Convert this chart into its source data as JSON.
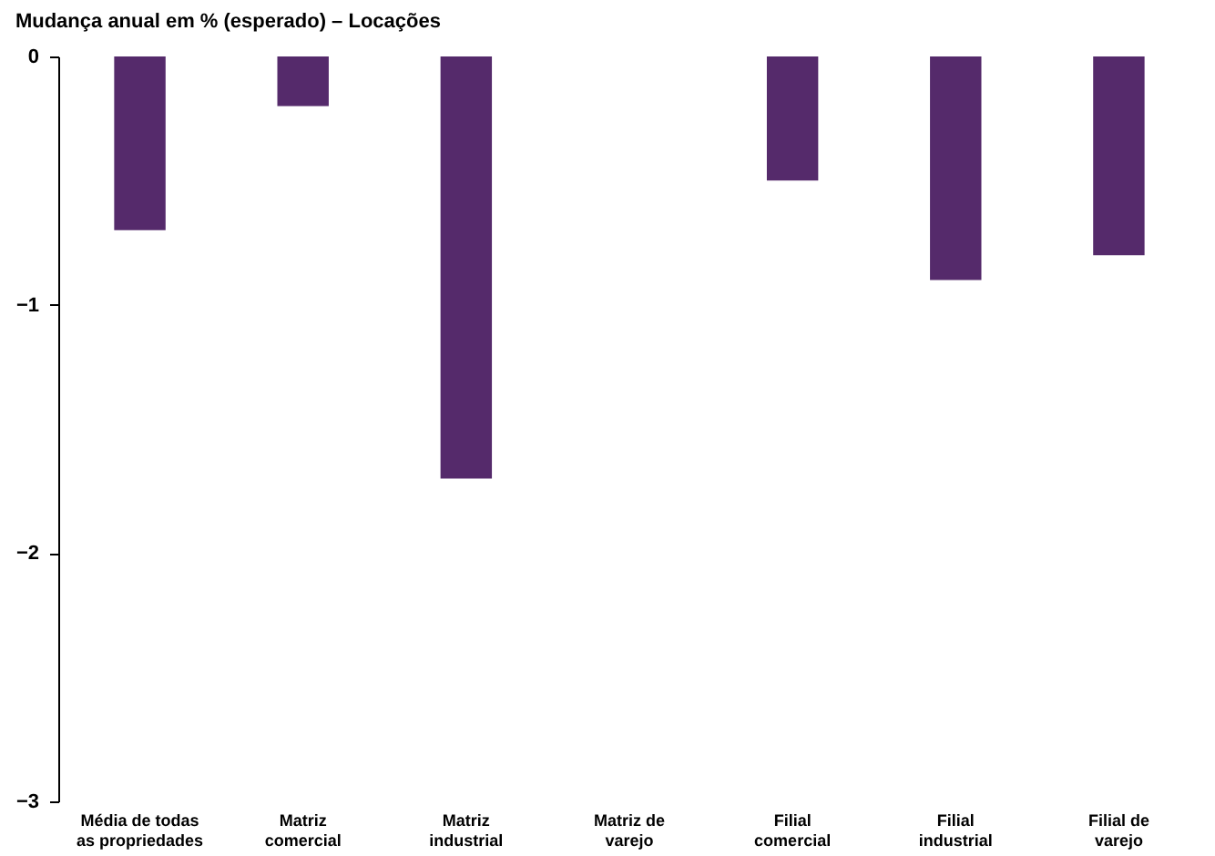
{
  "chart_data": {
    "type": "bar",
    "title": "Mudança anual em % (esperado) – Locações",
    "categories": [
      "Média de todas as propriedades",
      "Matriz comercial",
      "Matriz industrial",
      "Matriz de varejo",
      "Filial comercial",
      "Filial industrial",
      "Filial de varejo"
    ],
    "values": [
      -0.7,
      -0.2,
      -1.7,
      0,
      -0.5,
      -0.9,
      -0.8
    ],
    "color": "#552a6b",
    "ylim": [
      -3,
      0
    ],
    "yticks": [
      -3,
      -2,
      -1,
      0
    ],
    "grid": false
  }
}
